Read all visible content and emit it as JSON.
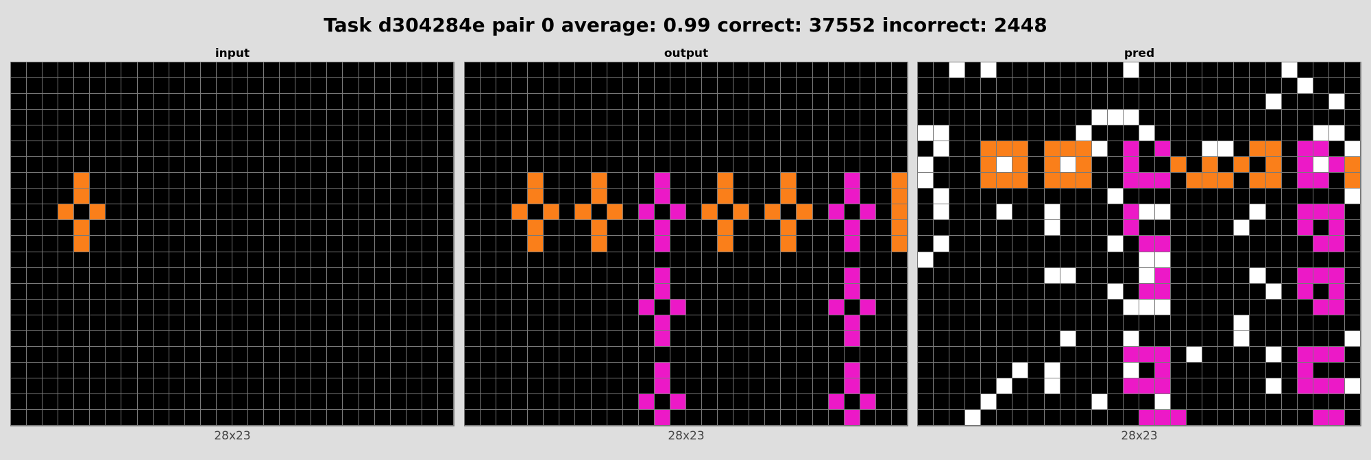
{
  "title": "Task d304284e pair 0 average: 0.99 correct: 37552 incorrect: 2448",
  "colors": {
    "0": "#000000",
    "1": "#fa7f1a",
    "2": "#ec19c7",
    "3": "#ffffff"
  },
  "panels": [
    {
      "title": "input",
      "size_label": "28x23",
      "rows": [
        "0000000000000000000000000000",
        "0000000000000000000000000000",
        "0000000000000000000000000000",
        "0000000000000000000000000000",
        "0000000000000000000000000000",
        "0000000000000000000000000000",
        "0000000000000000000000000000",
        "0000100000000000000000000000",
        "0000100000000000000000000000",
        "0001010000000000000000000000",
        "0000100000000000000000000000",
        "0000100000000000000000000000",
        "0000000000000000000000000000",
        "0000000000000000000000000000",
        "0000000000000000000000000000",
        "0000000000000000000000000000",
        "0000000000000000000000000000",
        "0000000000000000000000000000",
        "0000000000000000000000000000",
        "0000000000000000000000000000",
        "0000000000000000000000000000",
        "0000000000000000000000000000",
        "0000000000000000000000000000"
      ]
    },
    {
      "title": "output",
      "size_label": "28x23",
      "rows": [
        "0000000000000000000000000000",
        "0000000000000000000000000000",
        "0000000000000000000000000000",
        "0000000000000000000000000000",
        "0000000000000000000000000000",
        "0000000000000000000000000000",
        "0000000000000000000000000000",
        "0000100010002000100010002001",
        "0000100010002000100010002001",
        "0001010101020201010101020201",
        "0000100010002000100010002001",
        "0000100010002000100010002001",
        "0000000000000000000000000000",
        "0000000000002000000000002000",
        "0000000000002000000000002000",
        "0000000000020200000000020200",
        "0000000000002000000000002000",
        "0000000000002000000000002000",
        "0000000000000000000000000000",
        "0000000000002000000000002000",
        "0000000000002000000000002000",
        "0000000000020200000000020200",
        "0000000000002000000000002000"
      ]
    },
    {
      "title": "pred",
      "size_label": "28x23",
      "rows": [
        "0030300000000300000000030000",
        "0000000000000000000000003000",
        "0000000000000000000000300030",
        "0000000000033300000000000000",
        "3300000000300030000000000330",
        "0300111011130202003301102203",
        "3000131013100200101010102321",
        "3000111011100222011101102201",
        "0300000000003000000000000003",
        "0300030030000233000003002220",
        "0000000030000200000030002020",
        "0300000000003022000000000220",
        "3000000000000033000000000000",
        "0000000033000032000003002220",
        "0000000000003022000000302020",
        "0000000000000333000000000220",
        "0000000000000000000030000000",
        "0000000003000300000030000003",
        "0000000000000222030000302220",
        "0000003030000302000000002000",
        "0000030030000222000000302223",
        "0000300000030003000000000000",
        "0003000000000022200000000220"
      ]
    }
  ]
}
